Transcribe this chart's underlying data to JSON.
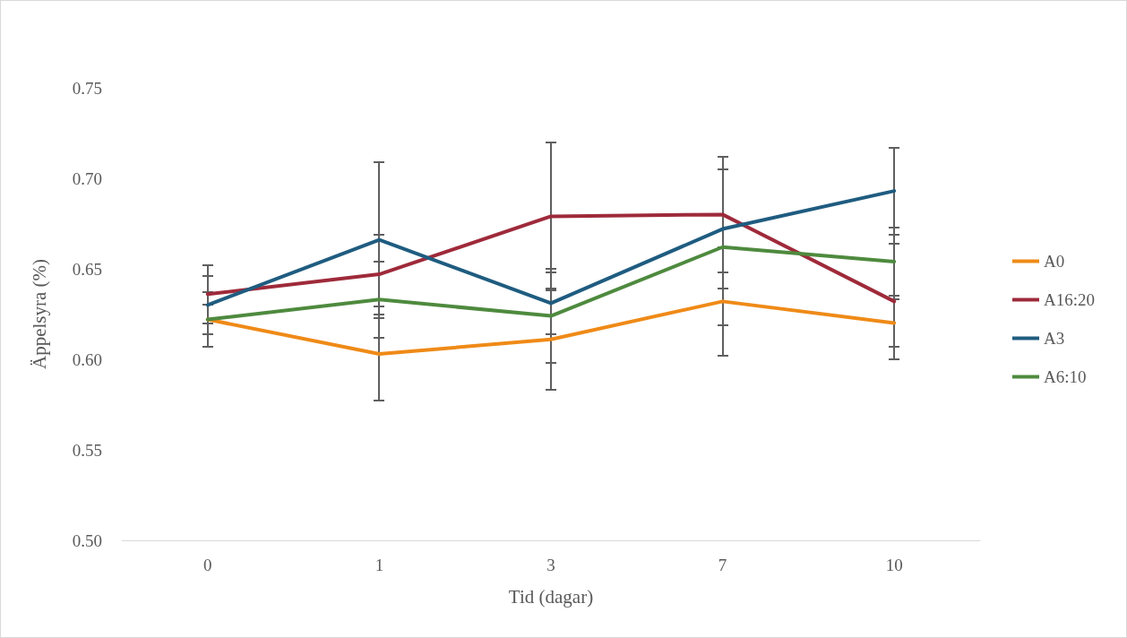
{
  "chart_data": {
    "type": "line",
    "xlabel": "Tid (dagar)",
    "ylabel": "Äppelsyra (%)",
    "categories": [
      "0",
      "1",
      "3",
      "7",
      "10"
    ],
    "series": [
      {
        "name": "A0",
        "color": "#ef8a17",
        "values": [
          0.622,
          0.603,
          0.611,
          0.632,
          0.62
        ],
        "errors": [
          0.015,
          0.026,
          0.028,
          0.03,
          0.013
        ]
      },
      {
        "name": "A16:20",
        "color": "#9e2a3a",
        "values": [
          0.636,
          0.647,
          0.679,
          0.68,
          0.632
        ],
        "errors": [
          0.016,
          0.022,
          0.041,
          0.032,
          0.032
        ]
      },
      {
        "name": "A3",
        "color": "#1f5c80",
        "values": [
          0.63,
          0.666,
          0.631,
          0.672,
          0.693
        ],
        "errors": [
          0.016,
          0.043,
          0.017,
          0.033,
          0.024
        ]
      },
      {
        "name": "A6:10",
        "color": "#4e8a3e",
        "values": [
          0.622,
          0.633,
          0.624,
          0.662,
          0.654
        ],
        "errors": [
          0.008,
          0.021,
          0.026,
          0.043,
          0.019
        ]
      }
    ],
    "ylim": [
      0.5,
      0.75
    ],
    "yticks": [
      {
        "value": 0.5,
        "label": "0.50"
      },
      0.55,
      {
        "value": 0.6,
        "label": "0.60"
      },
      0.65,
      {
        "value": 0.7,
        "label": "0.70"
      },
      0.75
    ],
    "grid": false,
    "legend": "right",
    "marker": "none",
    "line_style": "solid"
  }
}
